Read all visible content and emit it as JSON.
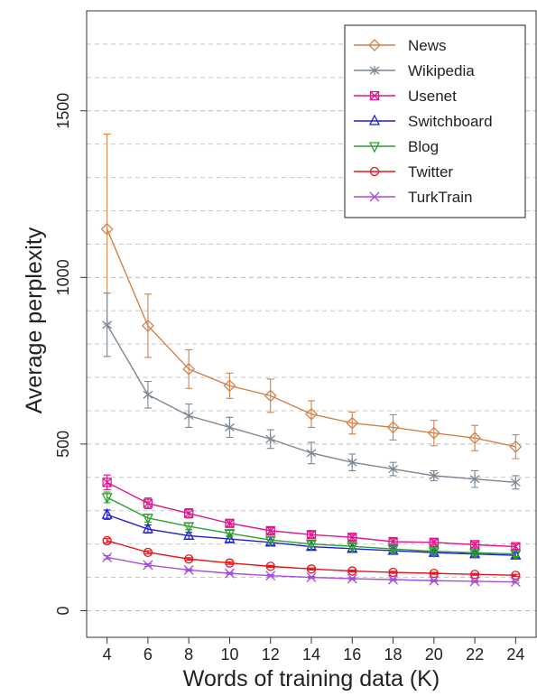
{
  "chart_data": {
    "type": "line",
    "title": "",
    "xlabel": "Words of training data (K)",
    "ylabel": "Average perplexity",
    "x": [
      4,
      6,
      8,
      10,
      12,
      14,
      16,
      18,
      20,
      22,
      24
    ],
    "xlim": [
      3,
      25
    ],
    "ylim": [
      -80,
      1800
    ],
    "yticks": [
      0,
      500,
      1000,
      1500
    ],
    "grid": "horizontal dashed",
    "legend_position": "top-right",
    "series": [
      {
        "name": "News",
        "color": "#d4824a",
        "marker": "diamond",
        "values": [
          1145,
          855,
          725,
          675,
          645,
          590,
          563,
          550,
          533,
          518,
          492
        ],
        "err": [
          285,
          95,
          58,
          38,
          50,
          40,
          33,
          38,
          38,
          38,
          36
        ]
      },
      {
        "name": "Wikipedia",
        "color": "#7b8794",
        "marker": "asterisk",
        "values": [
          858,
          648,
          585,
          550,
          515,
          473,
          445,
          425,
          405,
          395,
          385
        ],
        "err": [
          95,
          40,
          35,
          30,
          28,
          32,
          25,
          20,
          15,
          25,
          20
        ]
      },
      {
        "name": "Usenet",
        "color": "#e0158c",
        "marker": "boxed-cross",
        "values": [
          385,
          322,
          292,
          262,
          240,
          228,
          220,
          207,
          205,
          198,
          192
        ],
        "err": [
          22,
          16,
          14,
          10,
          9,
          9,
          9,
          9,
          8,
          8,
          8
        ]
      },
      {
        "name": "Switchboard",
        "color": "#1f1fd6",
        "marker": "triangle-up",
        "values": [
          288,
          245,
          225,
          215,
          205,
          192,
          186,
          180,
          174,
          170,
          166
        ],
        "err": [
          14,
          12,
          10,
          9,
          8,
          8,
          8,
          7,
          7,
          7,
          7
        ]
      },
      {
        "name": "Blog",
        "color": "#2ca02c",
        "marker": "triangle-down",
        "values": [
          340,
          278,
          253,
          232,
          212,
          200,
          193,
          185,
          178,
          174,
          170
        ],
        "err": [
          16,
          12,
          10,
          9,
          8,
          8,
          8,
          7,
          7,
          7,
          7
        ]
      },
      {
        "name": "Twitter",
        "color": "#e8151b",
        "marker": "circle",
        "values": [
          210,
          175,
          155,
          143,
          133,
          125,
          119,
          115,
          112,
          109,
          106
        ],
        "err": [
          6,
          5,
          4,
          4,
          3,
          3,
          3,
          3,
          3,
          3,
          3
        ]
      },
      {
        "name": "TurkTrain",
        "color": "#a64ddb",
        "marker": "x",
        "values": [
          160,
          137,
          122,
          112,
          105,
          100,
          96,
          93,
          90,
          88,
          86
        ],
        "err": [
          5,
          4,
          3,
          3,
          3,
          3,
          3,
          3,
          3,
          3,
          3
        ]
      }
    ]
  }
}
